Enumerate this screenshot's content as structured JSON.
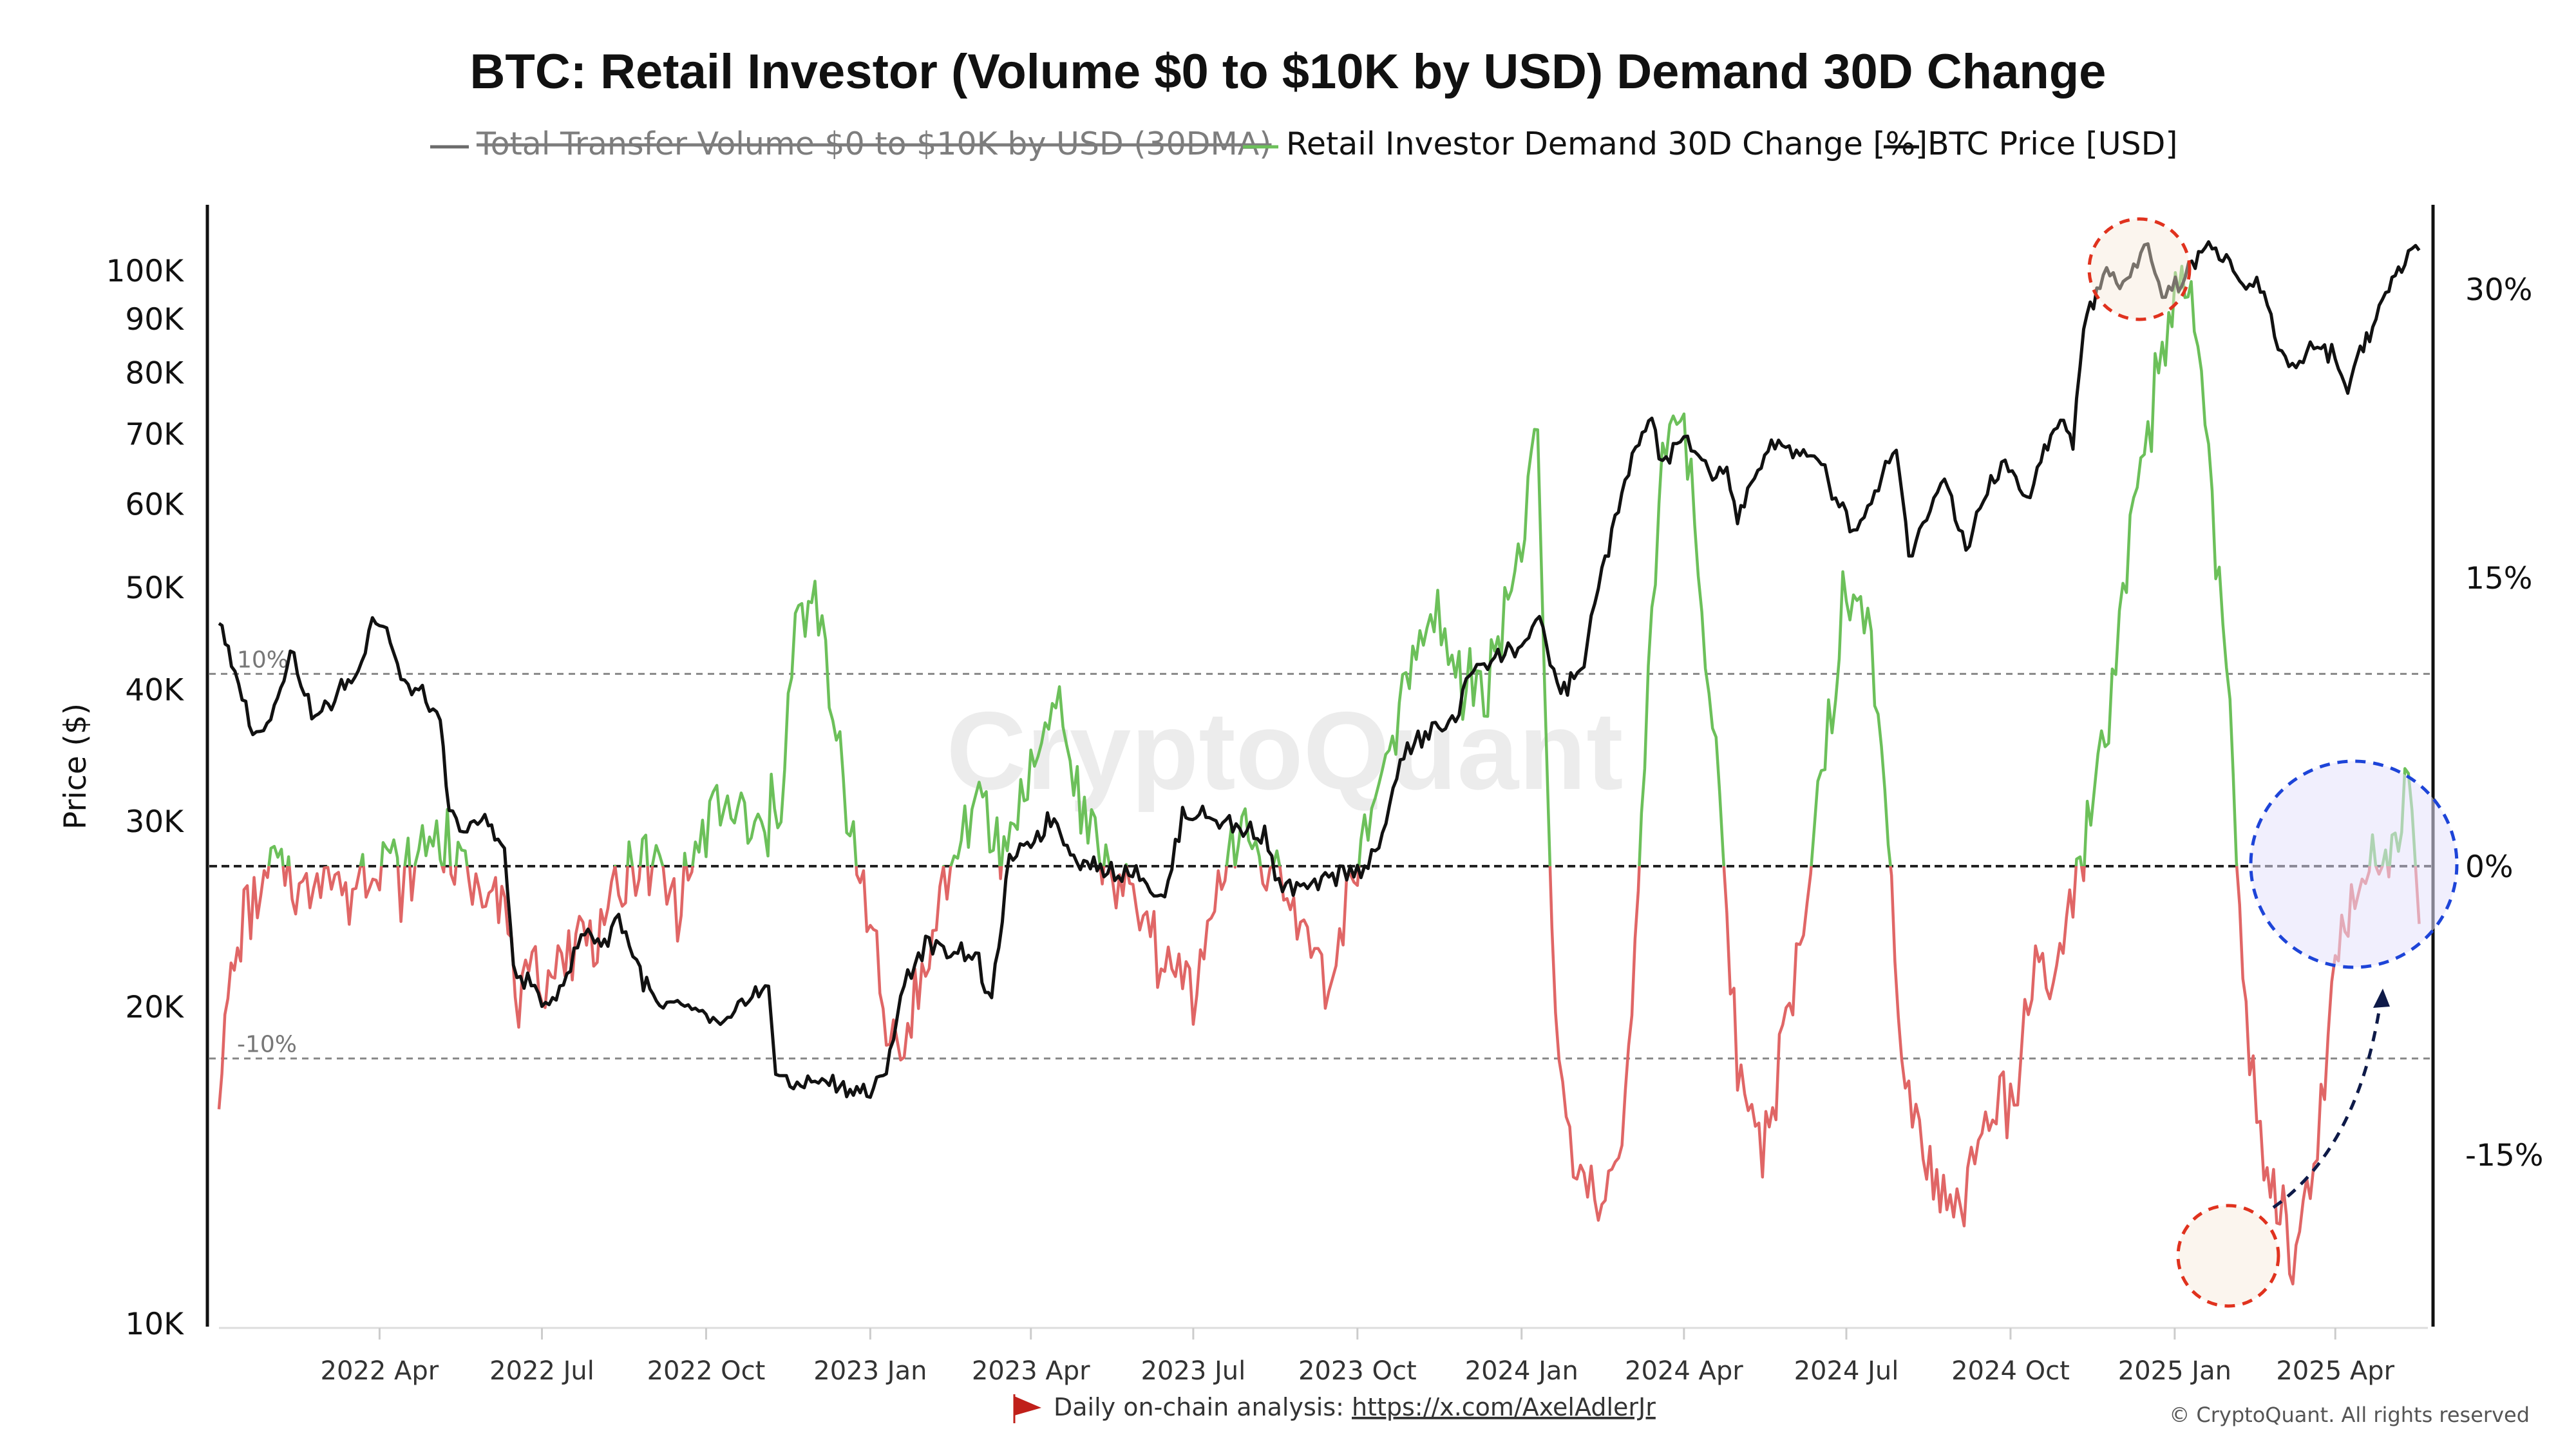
{
  "chart_data": {
    "type": "line",
    "title": "BTC: Retail Investor (Volume $0 to $10K by USD) Demand 30D Change",
    "ylabel": "Price ($)",
    "legend": [
      {
        "label": "Total Transfer Volume  $0 to $10K by USD (30DMA)",
        "color": "#6b6b6b",
        "hidden": true
      },
      {
        "label": "Retail Investor Demand 30D Change [%]",
        "color": "#6cc05a"
      },
      {
        "label": "BTC Price [USD]",
        "color": "#111111"
      }
    ],
    "x_ticks": [
      "2022 Apr",
      "2022 Jul",
      "2022 Oct",
      "2023 Jan",
      "2023 Apr",
      "2023 Jul",
      "2023 Oct",
      "2024 Jan",
      "2024 Apr",
      "2024 Jul",
      "2024 Oct",
      "2025 Jan",
      "2025 Apr"
    ],
    "y_left_scale": "log",
    "y_left_ticks": [
      "100K",
      "90K",
      "80K",
      "70K",
      "60K",
      "50K",
      "40K",
      "30K",
      "20K",
      "10K"
    ],
    "y_left_tick_values": [
      100000,
      90000,
      80000,
      70000,
      60000,
      50000,
      40000,
      30000,
      20000,
      10000
    ],
    "y_left_range": [
      10000,
      120000
    ],
    "y_right_ticks": [
      "30%",
      "15%",
      "0%",
      "-15%"
    ],
    "y_right_tick_values": [
      30,
      15,
      0,
      -15
    ],
    "y_right_range": [
      -24,
      35
    ],
    "reference_lines": [
      {
        "value": 10,
        "label": "10%"
      },
      {
        "value": 0,
        "label": ""
      },
      {
        "value": -10,
        "label": "-10%"
      }
    ],
    "positive_color": "#6cc05a",
    "negative_color": "#e06666",
    "x_range": [
      "2022-01-01",
      "2025-05-20"
    ],
    "series": [
      {
        "name": "BTC Price [USD]",
        "axis": "left",
        "color": "#111111",
        "x": [
          "2022-01-01",
          "2022-01-08",
          "2022-01-22",
          "2022-02-01",
          "2022-02-10",
          "2022-02-24",
          "2022-03-05",
          "2022-03-20",
          "2022-03-28",
          "2022-04-05",
          "2022-04-15",
          "2022-04-25",
          "2022-05-05",
          "2022-05-10",
          "2022-05-20",
          "2022-06-01",
          "2022-06-10",
          "2022-06-15",
          "2022-06-25",
          "2022-07-05",
          "2022-07-15",
          "2022-07-25",
          "2022-08-05",
          "2022-08-13",
          "2022-08-25",
          "2022-09-05",
          "2022-09-15",
          "2022-10-01",
          "2022-10-15",
          "2022-10-25",
          "2022-11-05",
          "2022-11-09",
          "2022-11-15",
          "2022-12-01",
          "2022-12-15",
          "2023-01-01",
          "2023-01-10",
          "2023-01-20",
          "2023-02-01",
          "2023-02-15",
          "2023-03-01",
          "2023-03-10",
          "2023-03-20",
          "2023-04-01",
          "2023-04-14",
          "2023-04-25",
          "2023-05-10",
          "2023-06-01",
          "2023-06-15",
          "2023-06-25",
          "2023-07-10",
          "2023-07-25",
          "2023-08-10",
          "2023-08-18",
          "2023-09-01",
          "2023-09-15",
          "2023-10-01",
          "2023-10-15",
          "2023-10-25",
          "2023-11-10",
          "2023-11-25",
          "2023-12-05",
          "2023-12-15",
          "2024-01-01",
          "2024-01-11",
          "2024-01-23",
          "2024-02-05",
          "2024-02-15",
          "2024-02-28",
          "2024-03-05",
          "2024-03-14",
          "2024-03-20",
          "2024-04-01",
          "2024-04-15",
          "2024-04-25",
          "2024-05-01",
          "2024-05-20",
          "2024-06-01",
          "2024-06-15",
          "2024-06-25",
          "2024-07-05",
          "2024-07-15",
          "2024-07-29",
          "2024-08-05",
          "2024-08-15",
          "2024-08-25",
          "2024-09-06",
          "2024-09-20",
          "2024-09-28",
          "2024-10-10",
          "2024-10-20",
          "2024-10-29",
          "2024-11-05",
          "2024-11-11",
          "2024-11-22",
          "2024-12-05",
          "2024-12-17",
          "2024-12-25",
          "2025-01-05",
          "2025-01-20",
          "2025-02-01",
          "2025-02-10",
          "2025-02-20",
          "2025-02-28",
          "2025-03-10",
          "2025-03-20",
          "2025-04-01",
          "2025-04-08",
          "2025-04-15",
          "2025-04-22",
          "2025-05-01",
          "2025-05-10",
          "2025-05-18"
        ],
        "y": [
          47000,
          42000,
          36000,
          38500,
          43500,
          37500,
          39000,
          41500,
          47000,
          45500,
          40000,
          39500,
          37000,
          30500,
          29500,
          30000,
          28000,
          21500,
          21000,
          19800,
          21500,
          23500,
          23000,
          24500,
          21500,
          19800,
          20200,
          19400,
          19200,
          20500,
          20800,
          17500,
          16800,
          17000,
          16800,
          16600,
          17400,
          21000,
          23000,
          22500,
          22500,
          20000,
          27500,
          28500,
          30400,
          27800,
          27000,
          26800,
          25000,
          30500,
          30400,
          29600,
          29200,
          26100,
          25800,
          26600,
          27000,
          28500,
          34500,
          36500,
          37500,
          42000,
          42800,
          44000,
          46500,
          39500,
          42500,
          52000,
          62000,
          68000,
          72000,
          65500,
          69500,
          64000,
          64500,
          58000,
          69000,
          67500,
          66000,
          61000,
          57000,
          60500,
          68500,
          53500,
          58500,
          64000,
          54000,
          63000,
          65500,
          60000,
          67500,
          72500,
          68000,
          88000,
          99000,
          97000,
          107000,
          95000,
          98000,
          106500,
          101000,
          96500,
          96000,
          84000,
          81000,
          85000,
          83000,
          76500,
          84500,
          88000,
          96500,
          103000,
          104500
        ]
      },
      {
        "name": "Retail Investor Demand 30D Change [%]",
        "axis": "right",
        "x": [
          "2022-01-01",
          "2022-01-06",
          "2022-01-15",
          "2022-02-01",
          "2022-02-15",
          "2022-03-01",
          "2022-03-15",
          "2022-04-01",
          "2022-04-15",
          "2022-05-01",
          "2022-05-15",
          "2022-05-25",
          "2022-06-05",
          "2022-06-12",
          "2022-06-20",
          "2022-07-01",
          "2022-07-10",
          "2022-07-20",
          "2022-08-01",
          "2022-08-15",
          "2022-09-01",
          "2022-09-15",
          "2022-10-01",
          "2022-10-15",
          "2022-11-01",
          "2022-11-12",
          "2022-11-20",
          "2022-12-01",
          "2022-12-15",
          "2023-01-01",
          "2023-01-10",
          "2023-01-20",
          "2023-02-01",
          "2023-02-15",
          "2023-03-01",
          "2023-03-15",
          "2023-04-01",
          "2023-04-15",
          "2023-05-01",
          "2023-05-15",
          "2023-06-01",
          "2023-06-15",
          "2023-07-01",
          "2023-07-15",
          "2023-08-01",
          "2023-08-15",
          "2023-09-01",
          "2023-09-15",
          "2023-10-01",
          "2023-10-15",
          "2023-11-01",
          "2023-11-15",
          "2023-12-01",
          "2023-12-15",
          "2024-01-01",
          "2024-01-10",
          "2024-01-20",
          "2024-02-01",
          "2024-02-15",
          "2024-03-01",
          "2024-03-10",
          "2024-03-20",
          "2024-04-01",
          "2024-04-15",
          "2024-05-01",
          "2024-05-15",
          "2024-06-01",
          "2024-06-15",
          "2024-07-01",
          "2024-07-15",
          "2024-08-01",
          "2024-08-15",
          "2024-09-01",
          "2024-09-15",
          "2024-10-01",
          "2024-10-15",
          "2024-10-25",
          "2024-11-05",
          "2024-11-15",
          "2024-11-25",
          "2024-12-05",
          "2024-12-15",
          "2024-12-25",
          "2025-01-05",
          "2025-01-12",
          "2025-01-20",
          "2025-02-01",
          "2025-02-10",
          "2025-02-20",
          "2025-03-01",
          "2025-03-10",
          "2025-03-20",
          "2025-04-01",
          "2025-04-10",
          "2025-04-20",
          "2025-05-01",
          "2025-05-10",
          "2025-05-18"
        ],
        "y": [
          -11,
          -7,
          -3,
          0,
          -1,
          0,
          -2,
          1,
          -1,
          2,
          0,
          -1,
          0,
          -4,
          -7,
          -6,
          -5,
          -4,
          -3,
          -1,
          0,
          -2,
          2,
          3,
          1,
          4,
          12,
          14,
          5,
          -3,
          -8,
          -9,
          -5,
          0,
          3,
          1,
          5,
          9,
          2,
          0,
          -3,
          -5,
          -6,
          -1,
          2,
          -1,
          -3,
          -6,
          0,
          4,
          11,
          13,
          9,
          10,
          17,
          22,
          -9,
          -16,
          -18,
          -11,
          5,
          22,
          24,
          10,
          -10,
          -14,
          -7,
          3,
          15,
          12,
          -9,
          -15,
          -18,
          -14,
          -12,
          -6,
          -5,
          -3,
          3,
          8,
          15,
          22,
          26,
          30,
          29,
          21,
          8,
          -8,
          -16,
          -18,
          -20,
          -16,
          -5,
          -2,
          0,
          -1,
          5,
          -3
        ]
      }
    ],
    "annotations": [
      "Daily on-chain analysis: ",
      "https://x.com/AxelAdlerJr",
      "© CryptoQuant. All rights reserved",
      "CryptoQuant"
    ]
  }
}
